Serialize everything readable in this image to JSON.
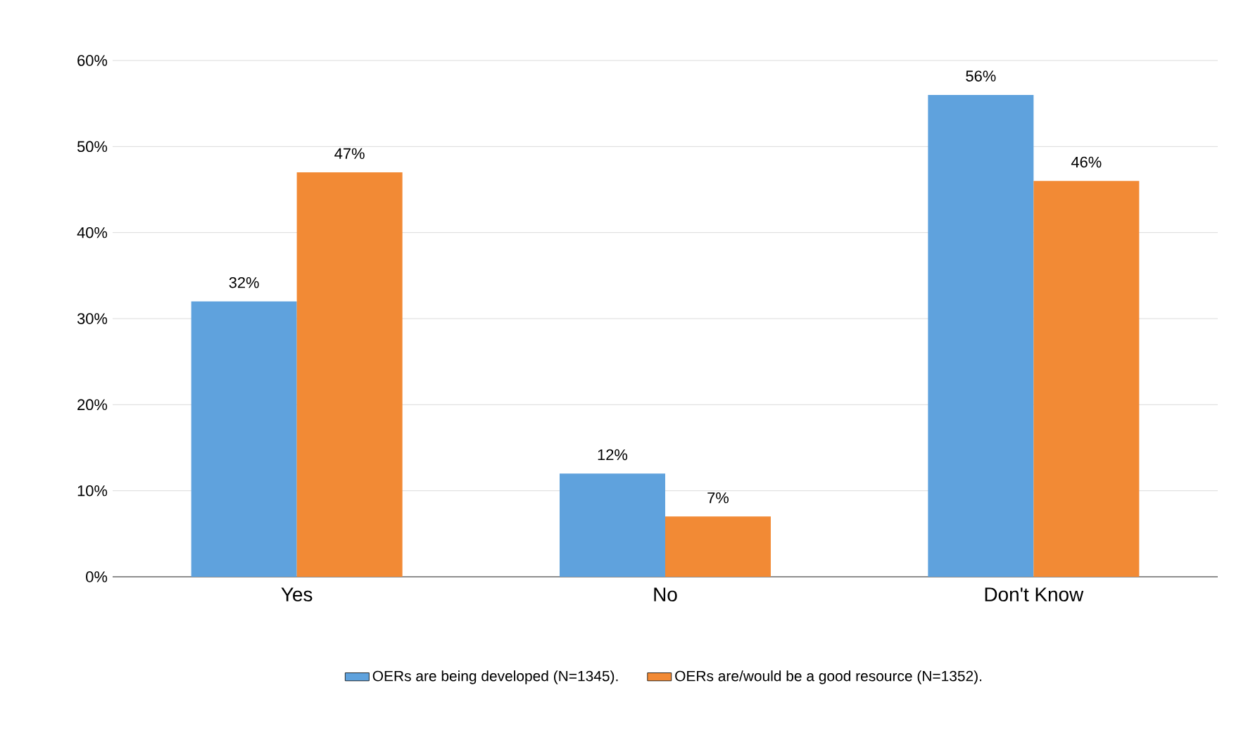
{
  "chart_data": {
    "type": "bar",
    "categories": [
      "Yes",
      "No",
      "Don't Know"
    ],
    "series": [
      {
        "name": "OERs are being developed (N=1345).",
        "color": "#5fa2dd",
        "values": [
          32,
          12,
          56
        ],
        "value_labels": [
          "32%",
          "12%",
          "56%"
        ]
      },
      {
        "name": "OERs are/would be a good resource (N=1352).",
        "color": "#f28a35",
        "values": [
          47,
          7,
          46
        ],
        "value_labels": [
          "47%",
          "7%",
          "46%"
        ]
      }
    ],
    "ylim": [
      0,
      60
    ],
    "yticks": [
      {
        "value": 0,
        "label": "0%"
      },
      {
        "value": 10,
        "label": "10%"
      },
      {
        "value": 20,
        "label": "20%"
      },
      {
        "value": 30,
        "label": "30%"
      },
      {
        "value": 40,
        "label": "40%"
      },
      {
        "value": 50,
        "label": "50%"
      },
      {
        "value": 60,
        "label": "60%"
      }
    ],
    "grid": "y",
    "legend": "bottom"
  }
}
